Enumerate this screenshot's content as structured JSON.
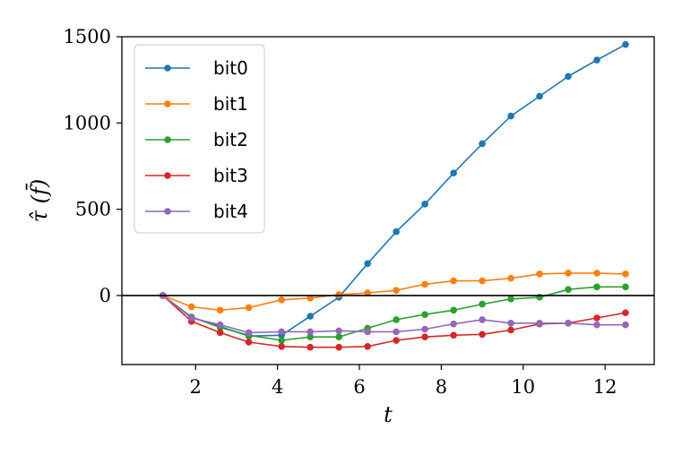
{
  "chart_data": {
    "type": "line",
    "xlabel": "t",
    "ylabel": "τ̂ (f̄)",
    "xlim": [
      0.2,
      13.2
    ],
    "ylim": [
      -400,
      1500
    ],
    "xticks": [
      "2",
      "4",
      "6",
      "8",
      "10",
      "12"
    ],
    "yticks": [
      "0",
      "500",
      "1000",
      "1500"
    ],
    "x": [
      1.2,
      1.9,
      2.6,
      3.3,
      4.1,
      4.8,
      5.5,
      6.2,
      6.9,
      7.6,
      8.3,
      9.0,
      9.7,
      10.4,
      11.1,
      11.8,
      12.5
    ],
    "series": [
      {
        "name": "bit0",
        "color": "#1f77b4",
        "values": [
          0,
          -125,
          -180,
          -235,
          -230,
          -120,
          -10,
          185,
          370,
          530,
          710,
          880,
          1040,
          1155,
          1270,
          1365,
          1455
        ]
      },
      {
        "name": "bit1",
        "color": "#ff7f0e",
        "values": [
          0,
          -65,
          -85,
          -70,
          -25,
          -15,
          5,
          15,
          30,
          65,
          85,
          85,
          100,
          125,
          130,
          130,
          125
        ]
      },
      {
        "name": "bit2",
        "color": "#2ca02c",
        "values": [
          0,
          -125,
          -185,
          -230,
          -260,
          -240,
          -240,
          -190,
          -140,
          -110,
          -85,
          -50,
          -20,
          -10,
          35,
          50,
          50
        ]
      },
      {
        "name": "bit3",
        "color": "#d62728",
        "values": [
          0,
          -150,
          -215,
          -270,
          -295,
          -300,
          -300,
          -295,
          -260,
          -240,
          -230,
          -225,
          -200,
          -165,
          -160,
          -130,
          -100
        ]
      },
      {
        "name": "bit4",
        "color": "#9467bd",
        "values": [
          0,
          -130,
          -170,
          -215,
          -210,
          -210,
          -205,
          -210,
          -210,
          -195,
          -165,
          -140,
          -160,
          -160,
          -160,
          -170,
          -170
        ]
      }
    ],
    "reference_line_y": 0,
    "grid": false,
    "legend": "top-left"
  }
}
